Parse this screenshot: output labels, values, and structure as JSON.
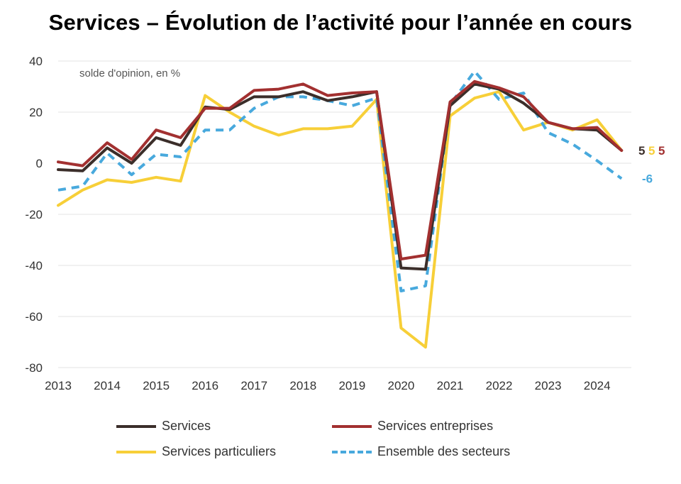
{
  "chart_data": {
    "type": "line",
    "title": "Services – Évolution de l’activité pour l’année en cours",
    "ylabel": "solde d'opinion, en %",
    "ylim": [
      -80,
      40
    ],
    "yticks": [
      40,
      20,
      0,
      -20,
      -40,
      -60,
      -80
    ],
    "xlim": [
      2013,
      2024.7
    ],
    "xticks": [
      2013,
      2014,
      2015,
      2016,
      2017,
      2018,
      2019,
      2020,
      2021,
      2022,
      2023,
      2024
    ],
    "grid": true,
    "legend_position": "bottom",
    "x": [
      2013.0,
      2013.5,
      2014.0,
      2014.5,
      2015.0,
      2015.5,
      2016.0,
      2016.5,
      2017.0,
      2017.5,
      2018.0,
      2018.5,
      2019.0,
      2019.5,
      2020.0,
      2020.5,
      2021.0,
      2021.5,
      2022.0,
      2022.5,
      2023.0,
      2023.5,
      2024.0,
      2024.5
    ],
    "series": [
      {
        "name": "Services",
        "color": "#3b2e2a",
        "dash": "solid",
        "end_label": "5",
        "values": [
          -2.5,
          -3,
          6,
          0,
          10,
          7,
          22,
          21,
          26,
          26,
          28,
          24.5,
          26,
          28,
          -41,
          -41.5,
          22.5,
          31,
          29,
          23.5,
          16,
          13.5,
          13,
          5
        ]
      },
      {
        "name": "Services entreprises",
        "color": "#a23030",
        "dash": "solid",
        "end_label": "5",
        "values": [
          0.5,
          -1,
          8,
          1.5,
          13,
          10,
          21.5,
          21.5,
          28.5,
          29,
          31,
          26.5,
          27.5,
          28,
          -37.5,
          -36,
          24,
          32,
          29.5,
          26,
          16,
          13.5,
          14,
          5
        ]
      },
      {
        "name": "Services particuliers",
        "color": "#f7cf38",
        "dash": "solid",
        "end_label": "5",
        "values": [
          -16.5,
          -10.5,
          -6.5,
          -7.5,
          -5.5,
          -7,
          26.5,
          20,
          14.5,
          11,
          13.5,
          13.5,
          14.5,
          25,
          -64.5,
          -72,
          18.5,
          25.5,
          28,
          13,
          16,
          13,
          17,
          5
        ]
      },
      {
        "name": "Ensemble des secteurs",
        "color": "#48a9dd",
        "dash": "dashed",
        "end_label": "-6",
        "values": [
          -10.5,
          -9,
          4,
          -4.5,
          3.5,
          2.5,
          13,
          13,
          21.5,
          26,
          26,
          24.5,
          22.5,
          25.5,
          -50,
          -48,
          23,
          36,
          25,
          27.5,
          12,
          7.5,
          1,
          -6
        ]
      }
    ]
  }
}
